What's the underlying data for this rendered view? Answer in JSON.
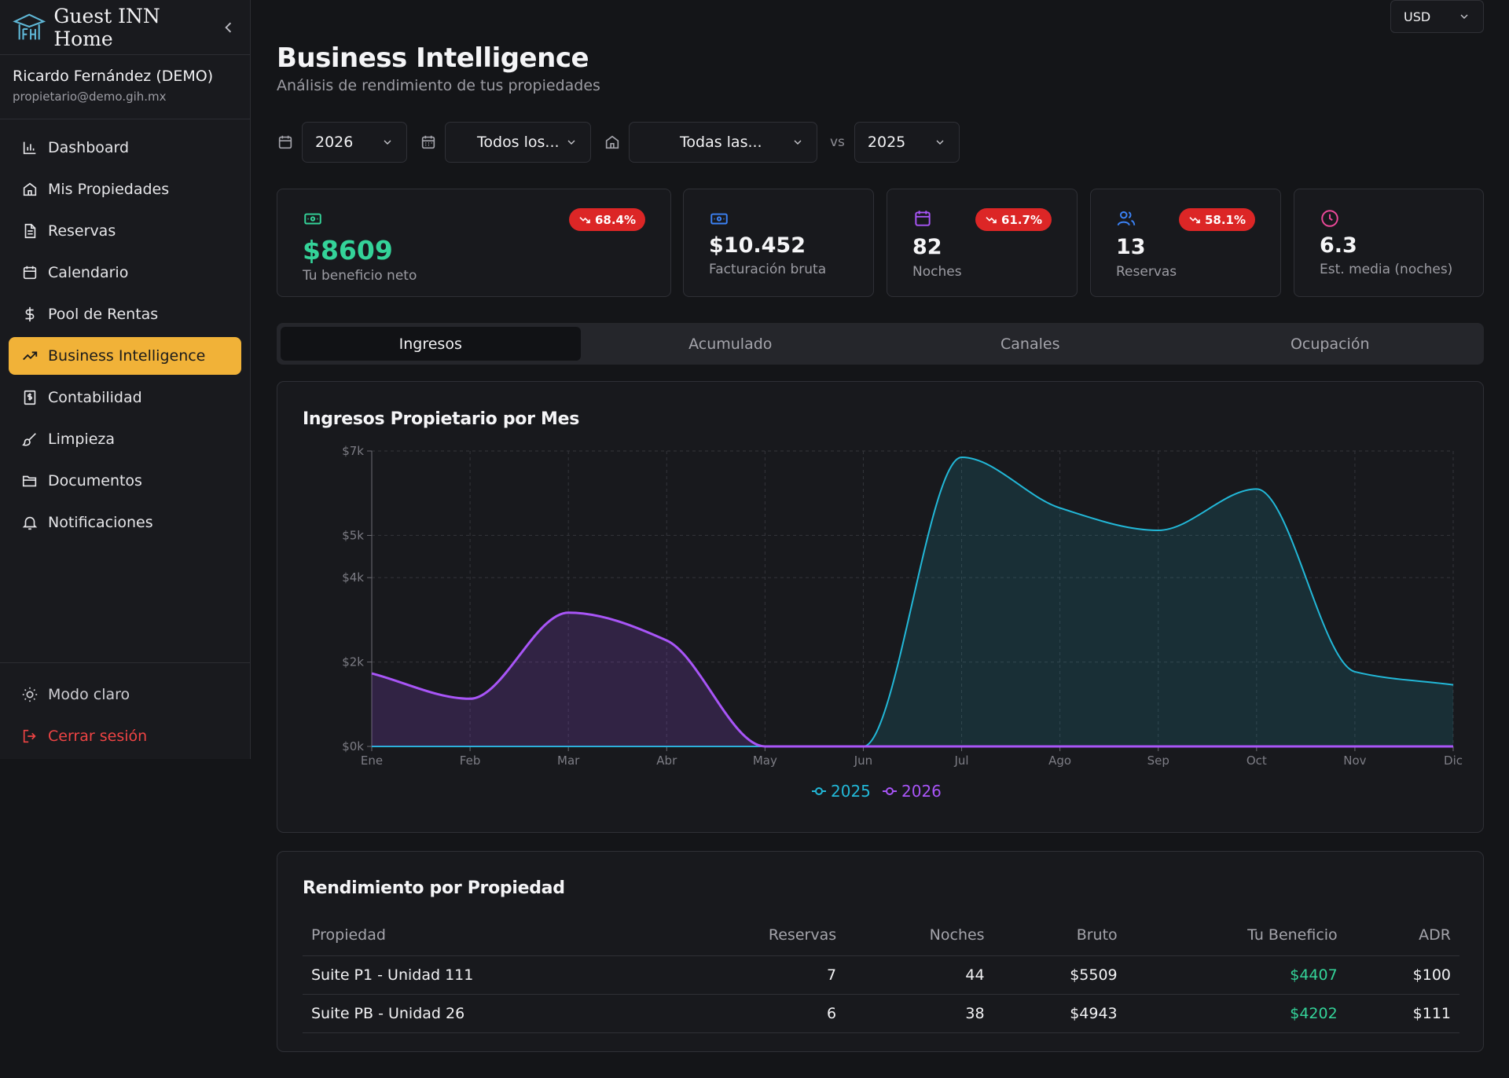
{
  "sidebar": {
    "brand": "Guest INN Home",
    "user": {
      "name": "Ricardo Fernández (DEMO)",
      "email": "propietario@demo.gih.mx"
    },
    "items": [
      {
        "label": "Dashboard",
        "icon": "bar-chart-icon"
      },
      {
        "label": "Mis Propiedades",
        "icon": "home-icon"
      },
      {
        "label": "Reservas",
        "icon": "document-icon"
      },
      {
        "label": "Calendario",
        "icon": "calendar-icon"
      },
      {
        "label": "Pool de Rentas",
        "icon": "dollar-icon"
      },
      {
        "label": "Business Intelligence",
        "icon": "trending-up-icon",
        "active": true
      },
      {
        "label": "Contabilidad",
        "icon": "receipt-icon"
      },
      {
        "label": "Limpieza",
        "icon": "brush-icon"
      },
      {
        "label": "Documentos",
        "icon": "folder-icon"
      },
      {
        "label": "Notificaciones",
        "icon": "bell-icon"
      }
    ],
    "bottom": {
      "theme": "Modo claro",
      "logout": "Cerrar sesión"
    }
  },
  "header": {
    "currency": "USD",
    "title": "Business Intelligence",
    "subtitle": "Análisis de rendimiento de tus propiedades"
  },
  "filters": {
    "year": "2026",
    "period": "Todos los...",
    "property": "Todas las...",
    "vs_label": "vs",
    "compare_year": "2025"
  },
  "kpis": [
    {
      "value": "$8609",
      "label": "Tu beneficio neto",
      "badge": "68.4%",
      "color": "#34d399"
    },
    {
      "value": "$10.452",
      "label": "Facturación bruta",
      "color": "#3b82f6"
    },
    {
      "value": "82",
      "label": "Noches",
      "badge": "61.7%",
      "color": "#a855f7"
    },
    {
      "value": "13",
      "label": "Reservas",
      "badge": "58.1%",
      "color": "#3b82f6"
    },
    {
      "value": "6.3",
      "label": "Est. media (noches)",
      "color": "#ec4899"
    }
  ],
  "tabs": [
    "Ingresos",
    "Acumulado",
    "Canales",
    "Ocupación"
  ],
  "chart_card": {
    "title": "Ingresos Propietario por Mes"
  },
  "chart_data": {
    "type": "area",
    "categories": [
      "Ene",
      "Feb",
      "Mar",
      "Abr",
      "May",
      "Jun",
      "Jul",
      "Ago",
      "Sep",
      "Oct",
      "Nov",
      "Dic"
    ],
    "y_ticks": [
      "$0k",
      "$2k",
      "$4k",
      "$5k",
      "$7k"
    ],
    "ylim": [
      0,
      7000
    ],
    "grid": true,
    "legend_position": "bottom-center",
    "series": [
      {
        "name": "2025",
        "color": "#22b8d8",
        "values": [
          0,
          0,
          0,
          0,
          0,
          0,
          6850,
          5650,
          5120,
          6100,
          1770,
          1460
        ]
      },
      {
        "name": "2026",
        "color": "#a855f7",
        "values": [
          1730,
          1130,
          3170,
          2510,
          0,
          0,
          0,
          0,
          0,
          0,
          0,
          0
        ]
      }
    ]
  },
  "table": {
    "title": "Rendimiento por Propiedad",
    "columns": [
      "Propiedad",
      "Reservas",
      "Noches",
      "Bruto",
      "Tu Beneficio",
      "ADR"
    ],
    "rows": [
      [
        "Suite P1 - Unidad 111",
        "7",
        "44",
        "$5509",
        "$4407",
        "$100"
      ],
      [
        "Suite PB - Unidad 26",
        "6",
        "38",
        "$4943",
        "$4202",
        "$111"
      ]
    ]
  }
}
